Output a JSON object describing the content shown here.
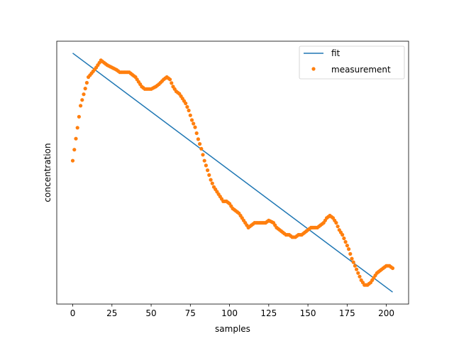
{
  "chart_data": {
    "type": "line",
    "title": "",
    "xlabel": "samples",
    "ylabel": "concentration",
    "xlim": [
      -10.2,
      214.2
    ],
    "ylim": [
      -0.05,
      1.05
    ],
    "xticks": [
      0,
      25,
      50,
      75,
      100,
      125,
      150,
      175,
      200
    ],
    "y_tick_labels_shown": false,
    "grid": false,
    "legend": {
      "placement": "upper right",
      "entries": [
        "fit",
        "measurement"
      ]
    },
    "series": [
      {
        "name": "fit",
        "kind": "line",
        "color": "#1f77b4",
        "x": [
          0,
          204
        ],
        "y": [
          1.0,
          0.0
        ]
      },
      {
        "name": "measurement",
        "kind": "scatter",
        "color": "#ff7f0e",
        "x": [
          0,
          5,
          10,
          15,
          18,
          20,
          22,
          25,
          28,
          30,
          33,
          36,
          38,
          40,
          42,
          44,
          46,
          48,
          50,
          53,
          55,
          58,
          60,
          62,
          64,
          66,
          68,
          70,
          72,
          74,
          76,
          78,
          80,
          82,
          84,
          86,
          88,
          90,
          92,
          94,
          96,
          98,
          100,
          102,
          104,
          106,
          108,
          110,
          112,
          114,
          116,
          118,
          120,
          123,
          125,
          128,
          130,
          132,
          134,
          136,
          138,
          140,
          142,
          144,
          146,
          148,
          150,
          152,
          154,
          156,
          158,
          160,
          162,
          164,
          166,
          168,
          170,
          172,
          174,
          176,
          178,
          180,
          182,
          184,
          186,
          188,
          190,
          192,
          194,
          196,
          198,
          200,
          202,
          204
        ],
        "y": [
          0.55,
          0.78,
          0.9,
          0.94,
          0.97,
          0.96,
          0.95,
          0.94,
          0.93,
          0.92,
          0.92,
          0.92,
          0.91,
          0.9,
          0.88,
          0.86,
          0.85,
          0.85,
          0.85,
          0.86,
          0.87,
          0.89,
          0.9,
          0.89,
          0.86,
          0.84,
          0.83,
          0.81,
          0.79,
          0.76,
          0.72,
          0.69,
          0.64,
          0.6,
          0.55,
          0.51,
          0.47,
          0.44,
          0.42,
          0.4,
          0.38,
          0.38,
          0.37,
          0.35,
          0.34,
          0.33,
          0.31,
          0.29,
          0.27,
          0.28,
          0.29,
          0.29,
          0.29,
          0.29,
          0.3,
          0.29,
          0.27,
          0.26,
          0.25,
          0.24,
          0.24,
          0.23,
          0.23,
          0.24,
          0.24,
          0.25,
          0.26,
          0.27,
          0.27,
          0.27,
          0.28,
          0.29,
          0.31,
          0.32,
          0.31,
          0.29,
          0.26,
          0.24,
          0.21,
          0.18,
          0.14,
          0.11,
          0.08,
          0.05,
          0.03,
          0.03,
          0.04,
          0.06,
          0.08,
          0.09,
          0.1,
          0.11,
          0.11,
          0.1
        ]
      }
    ]
  }
}
